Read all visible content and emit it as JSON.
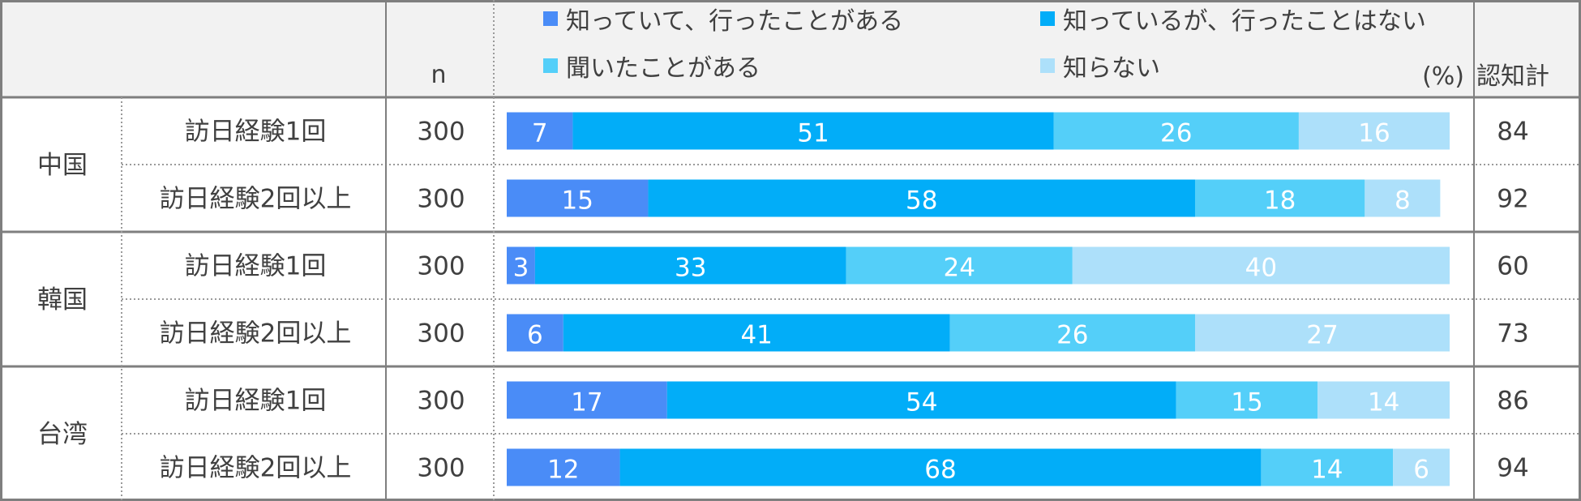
{
  "header": {
    "n_label": "n",
    "unit_label": "(%)",
    "total_label": "認知計"
  },
  "chart_data": {
    "type": "bar",
    "stacked": true,
    "orientation": "horizontal",
    "xlim": [
      0,
      100
    ],
    "legend_position": "top",
    "series": [
      {
        "name": "知っていて、行ったことがある",
        "color": "#4a8cf7",
        "values": [
          7,
          15,
          3,
          6,
          17,
          12
        ]
      },
      {
        "name": "知っているが、行ったことはない",
        "color": "#02adf8",
        "values": [
          51,
          58,
          33,
          41,
          54,
          68
        ]
      },
      {
        "name": "聞いたことがある",
        "color": "#54cff9",
        "values": [
          26,
          18,
          24,
          26,
          15,
          14
        ]
      },
      {
        "name": "知らない",
        "color": "#ade0fa",
        "values": [
          16,
          8,
          40,
          27,
          14,
          6
        ]
      }
    ],
    "groups": [
      {
        "name": "中国",
        "rows": [
          {
            "label": "訪日経験1回",
            "n": "300",
            "total": "84"
          },
          {
            "label": "訪日経験2回以上",
            "n": "300",
            "total": "92"
          }
        ]
      },
      {
        "name": "韓国",
        "rows": [
          {
            "label": "訪日経験1回",
            "n": "300",
            "total": "60"
          },
          {
            "label": "訪日経験2回以上",
            "n": "300",
            "total": "73"
          }
        ]
      },
      {
        "name": "台湾",
        "rows": [
          {
            "label": "訪日経験1回",
            "n": "300",
            "total": "86"
          },
          {
            "label": "訪日経験2回以上",
            "n": "300",
            "total": "94"
          }
        ]
      }
    ]
  }
}
